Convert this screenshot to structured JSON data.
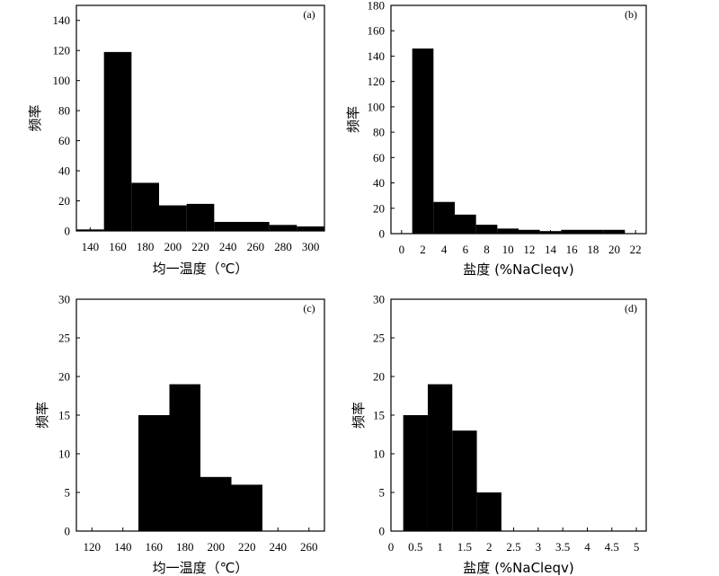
{
  "chart_data": [
    {
      "type": "bar",
      "panel_label": "(a)",
      "xlabel": "均一温度（℃）",
      "ylabel": "频率",
      "xlim": [
        130,
        310
      ],
      "ylim": [
        0,
        150
      ],
      "xticks": [
        140,
        160,
        180,
        200,
        220,
        240,
        260,
        280,
        300
      ],
      "yticks": [
        0,
        20,
        40,
        60,
        80,
        100,
        120,
        140
      ],
      "bins": [
        {
          "x0": 130,
          "x1": 150,
          "value": 1
        },
        {
          "x0": 150,
          "x1": 170,
          "value": 119
        },
        {
          "x0": 170,
          "x1": 190,
          "value": 32
        },
        {
          "x0": 190,
          "x1": 210,
          "value": 17
        },
        {
          "x0": 210,
          "x1": 230,
          "value": 18
        },
        {
          "x0": 230,
          "x1": 250,
          "value": 6
        },
        {
          "x0": 250,
          "x1": 270,
          "value": 6
        },
        {
          "x0": 270,
          "x1": 290,
          "value": 4
        },
        {
          "x0": 290,
          "x1": 310,
          "value": 3
        }
      ]
    },
    {
      "type": "bar",
      "panel_label": "(b)",
      "xlabel": "盐度 (%NaCleqv)",
      "ylabel": "频率",
      "xlim": [
        -1,
        23
      ],
      "ylim": [
        0,
        180
      ],
      "xticks": [
        0,
        2,
        4,
        6,
        8,
        10,
        12,
        14,
        16,
        18,
        20,
        22
      ],
      "yticks": [
        0,
        20,
        40,
        60,
        80,
        100,
        120,
        140,
        160,
        180
      ],
      "bins": [
        {
          "x0": 1,
          "x1": 3,
          "value": 146
        },
        {
          "x0": 3,
          "x1": 5,
          "value": 25
        },
        {
          "x0": 5,
          "x1": 7,
          "value": 15
        },
        {
          "x0": 7,
          "x1": 9,
          "value": 7
        },
        {
          "x0": 9,
          "x1": 11,
          "value": 4
        },
        {
          "x0": 11,
          "x1": 13,
          "value": 3
        },
        {
          "x0": 13,
          "x1": 15,
          "value": 2
        },
        {
          "x0": 15,
          "x1": 17,
          "value": 3
        },
        {
          "x0": 17,
          "x1": 19,
          "value": 3
        },
        {
          "x0": 19,
          "x1": 21,
          "value": 3
        }
      ]
    },
    {
      "type": "bar",
      "panel_label": "(c)",
      "xlabel": "均一温度（℃）",
      "ylabel": "频率",
      "xlim": [
        110,
        270
      ],
      "ylim": [
        0,
        30
      ],
      "xticks": [
        120,
        140,
        160,
        180,
        200,
        220,
        240,
        260
      ],
      "yticks": [
        0,
        5,
        10,
        15,
        20,
        25,
        30
      ],
      "bins": [
        {
          "x0": 150,
          "x1": 170,
          "value": 15
        },
        {
          "x0": 170,
          "x1": 190,
          "value": 19
        },
        {
          "x0": 190,
          "x1": 210,
          "value": 7
        },
        {
          "x0": 210,
          "x1": 230,
          "value": 6
        }
      ]
    },
    {
      "type": "bar",
      "panel_label": "(d)",
      "xlabel": "盐度 (%NaCleqv)",
      "ylabel": "频率",
      "xlim": [
        0,
        5.2
      ],
      "ylim": [
        0,
        30
      ],
      "xticks": [
        "0",
        "0.5",
        "1",
        "1.5",
        "2",
        "2.5",
        "3",
        "3.5",
        "4",
        "4.5",
        "5"
      ],
      "yticks": [
        0,
        5,
        10,
        15,
        20,
        25,
        30
      ],
      "bins": [
        {
          "x0": 0.25,
          "x1": 0.75,
          "value": 15
        },
        {
          "x0": 0.75,
          "x1": 1.25,
          "value": 19
        },
        {
          "x0": 1.25,
          "x1": 1.75,
          "value": 13
        },
        {
          "x0": 1.75,
          "x1": 2.25,
          "value": 5
        }
      ]
    }
  ]
}
